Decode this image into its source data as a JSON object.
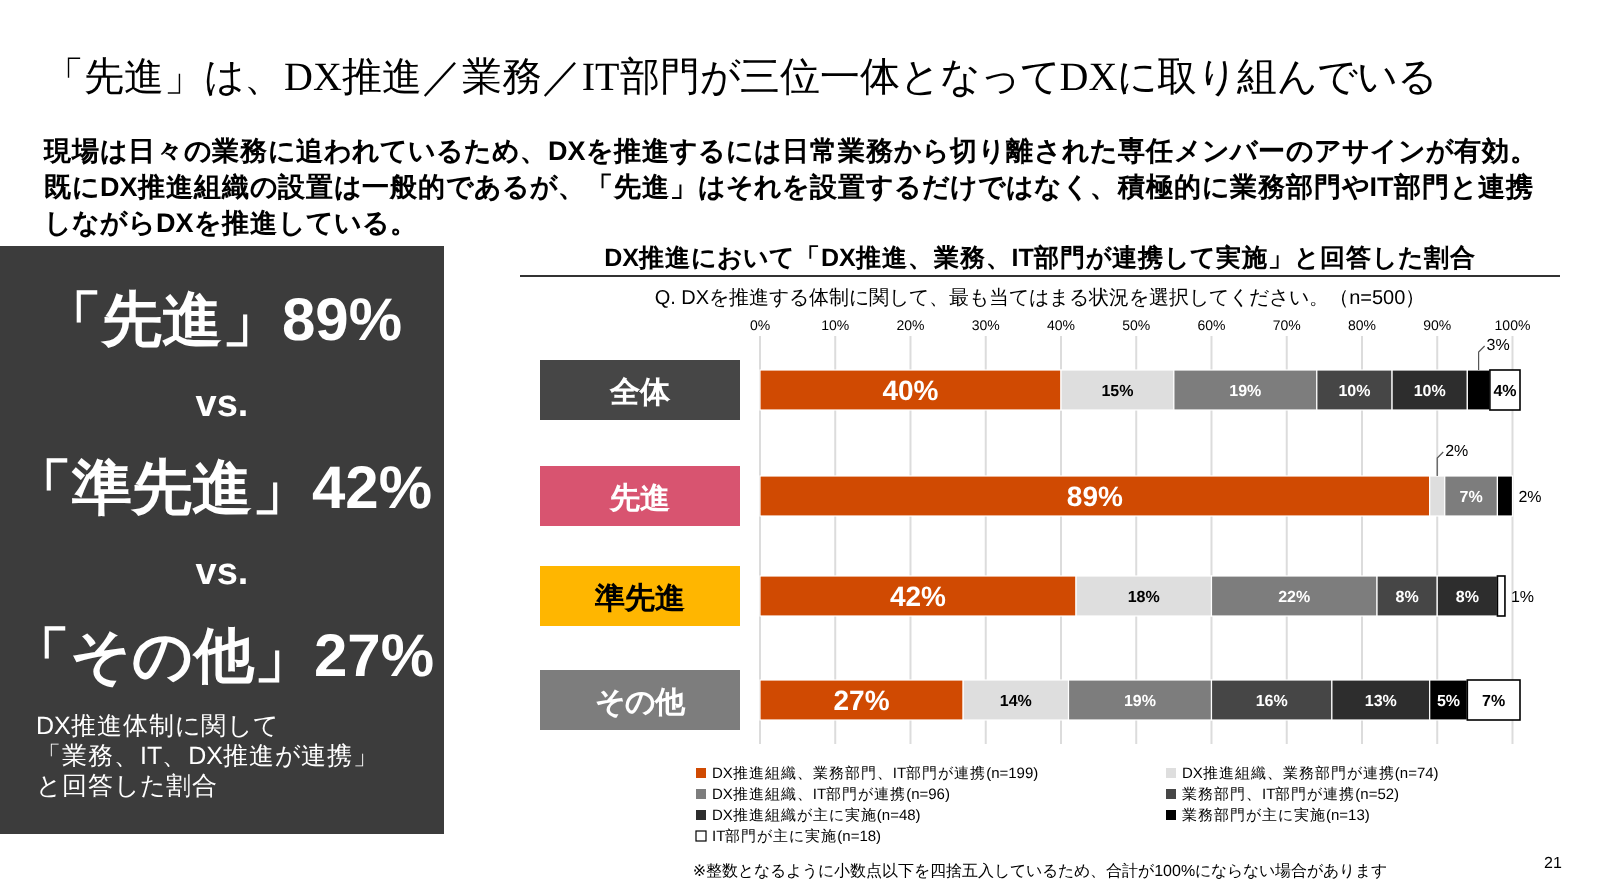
{
  "chart_data": {
    "type": "bar",
    "orientation": "horizontal",
    "stacked": true,
    "title": "「先進」は、DX推進／業務／IT部門が三位一体となってDXに取り組んでいる",
    "subtitle": "現場は日々の業務に追われているため、DXを推進するには日常業務から切り離された専任メンバーのアサインが有効。既にDX推進組織の設置は一般的であるが、「先進」はそれを設置するだけではなく、積極的に業務部門やIT部門と連携しながらDXを推進している。",
    "annotations": [
      "DX推進において「DX推進、業務、IT部門が連携して実施」と回答した割合",
      "Q. DXを推進する体制に関して、最も当てはまる状況を選択してください。（n=500）",
      "「先進」89%",
      "vs.",
      "「準先進」42%",
      "vs.",
      "「その他」27%",
      "DX推進体制に関して「業務、IT、DX推進が連携」と回答した割合",
      "※整数となるように小数点以下を四捨五入しているため、合計が100%にならない場合があります",
      "21"
    ],
    "categories": [
      "全体",
      "先進",
      "準先進",
      "その他"
    ],
    "xlim": [
      0,
      101
    ],
    "xticks": [
      {
        "value": 0,
        "label": "0%"
      },
      {
        "value": 10,
        "label": "10%"
      },
      {
        "value": 20,
        "label": "20%"
      },
      {
        "value": 30,
        "label": "30%"
      },
      {
        "value": 40,
        "label": "40%"
      },
      {
        "value": 50,
        "label": "50%"
      },
      {
        "value": 60,
        "label": "60%"
      },
      {
        "value": 70,
        "label": "70%"
      },
      {
        "value": 80,
        "label": "80%"
      },
      {
        "value": 90,
        "label": "90%"
      },
      {
        "value": 100,
        "label": "100%"
      }
    ],
    "grid": "x",
    "legend": "bottom",
    "series": [
      {
        "name": "DX推進組織、業務部門、IT部門が連携(n=199)",
        "color": "#d04a02",
        "values": [
          40,
          89,
          42,
          27
        ],
        "value_labels": [
          "40%",
          "89%",
          "42%",
          "27%"
        ]
      },
      {
        "name": "DX推進組織、業務部門が連携(n=74)",
        "color": "#dedede",
        "values": [
          15,
          2,
          18,
          14
        ],
        "value_labels": [
          "15%",
          "2%",
          "18%",
          "14%"
        ]
      },
      {
        "name": "DX推進組織、IT部門が連携(n=96)",
        "color": "#7d7d7d",
        "values": [
          19,
          7,
          22,
          19
        ],
        "value_labels": [
          "19%",
          "7%",
          "22%",
          "19%"
        ]
      },
      {
        "name": "業務部門、IT部門が連携(n=52)",
        "color": "#464646",
        "values": [
          10,
          null,
          8,
          16
        ],
        "value_labels": [
          "10%",
          null,
          "8%",
          "16%"
        ]
      },
      {
        "name": "DX推進組織が主に実施(n=48)",
        "color": "#2d2d2d",
        "values": [
          10,
          null,
          8,
          13
        ],
        "value_labels": [
          "10%",
          null,
          "8%",
          "13%"
        ]
      },
      {
        "name": "業務部門が主に実施(n=13)",
        "color": "#000000",
        "values": [
          3,
          2,
          null,
          5
        ],
        "value_labels": [
          "3%",
          "2%",
          null,
          "5%"
        ]
      },
      {
        "name": "IT部門が主に実施(n=18)",
        "color": "#ffffff",
        "values": [
          4,
          null,
          1,
          7
        ],
        "value_labels": [
          "4%",
          null,
          "1%",
          "7%"
        ]
      }
    ]
  }
}
